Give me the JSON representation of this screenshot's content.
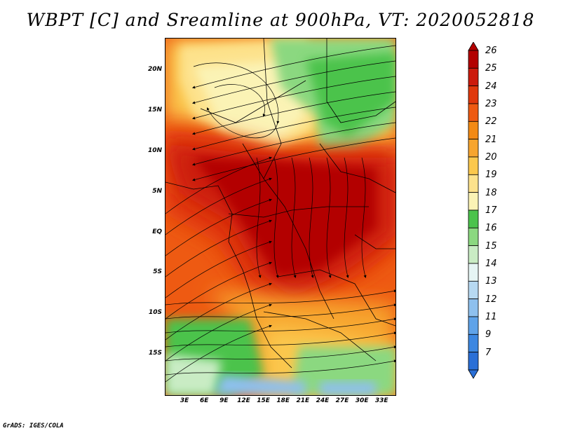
{
  "title": "WBPT [C] and Sreamline at 900hPa, VT: 2020052818",
  "credit": "GrADS: IGES/COLA",
  "map": {
    "lon_range": [
      0,
      35
    ],
    "lat_range": [
      -20,
      24
    ],
    "lat_ticks": [
      {
        "lat": 20,
        "label": "20N"
      },
      {
        "lat": 15,
        "label": "15N"
      },
      {
        "lat": 10,
        "label": "10N"
      },
      {
        "lat": 5,
        "label": "5N"
      },
      {
        "lat": 0,
        "label": "EQ"
      },
      {
        "lat": -5,
        "label": "5S"
      },
      {
        "lat": -10,
        "label": "10S"
      },
      {
        "lat": -15,
        "label": "15S"
      }
    ],
    "lon_ticks": [
      {
        "lon": 3,
        "label": "3E"
      },
      {
        "lon": 6,
        "label": "6E"
      },
      {
        "lon": 9,
        "label": "9E"
      },
      {
        "lon": 12,
        "label": "12E"
      },
      {
        "lon": 15,
        "label": "15E"
      },
      {
        "lon": 18,
        "label": "18E"
      },
      {
        "lon": 21,
        "label": "21E"
      },
      {
        "lon": 24,
        "label": "24E"
      },
      {
        "lon": 27,
        "label": "27E"
      },
      {
        "lon": 30,
        "label": "30E"
      },
      {
        "lon": 33,
        "label": "33E"
      }
    ]
  },
  "colorbar": {
    "levels": [
      "26",
      "25",
      "24",
      "23",
      "22",
      "21",
      "20",
      "19",
      "18",
      "17",
      "16",
      "15",
      "14",
      "13",
      "12",
      "11",
      "9",
      "7"
    ],
    "colors": [
      "#b30000",
      "#cc1a0c",
      "#e0380c",
      "#ee5a12",
      "#f38a14",
      "#f7a52e",
      "#fbc84d",
      "#fde28c",
      "#fbf3b5",
      "#4bc34c",
      "#8bd880",
      "#c9ecc4",
      "#e6f5f4",
      "#b7d9f2",
      "#8ec0ee",
      "#5fa3e9",
      "#3c87e1",
      "#2a6fd6"
    ]
  },
  "field_colors": {
    "deep_red": "#b30000",
    "red": "#cc1a0c",
    "red_orange": "#e0380c",
    "orange": "#ee5a12",
    "light_orange": "#f38a14",
    "amber": "#f7a52e",
    "gold": "#fbc84d",
    "yellow": "#fde28c",
    "pale": "#fbf3b5",
    "green": "#4bc34c",
    "mid_green": "#8bd880",
    "light_green": "#c9ecc4",
    "blue": "#8ec0ee"
  }
}
